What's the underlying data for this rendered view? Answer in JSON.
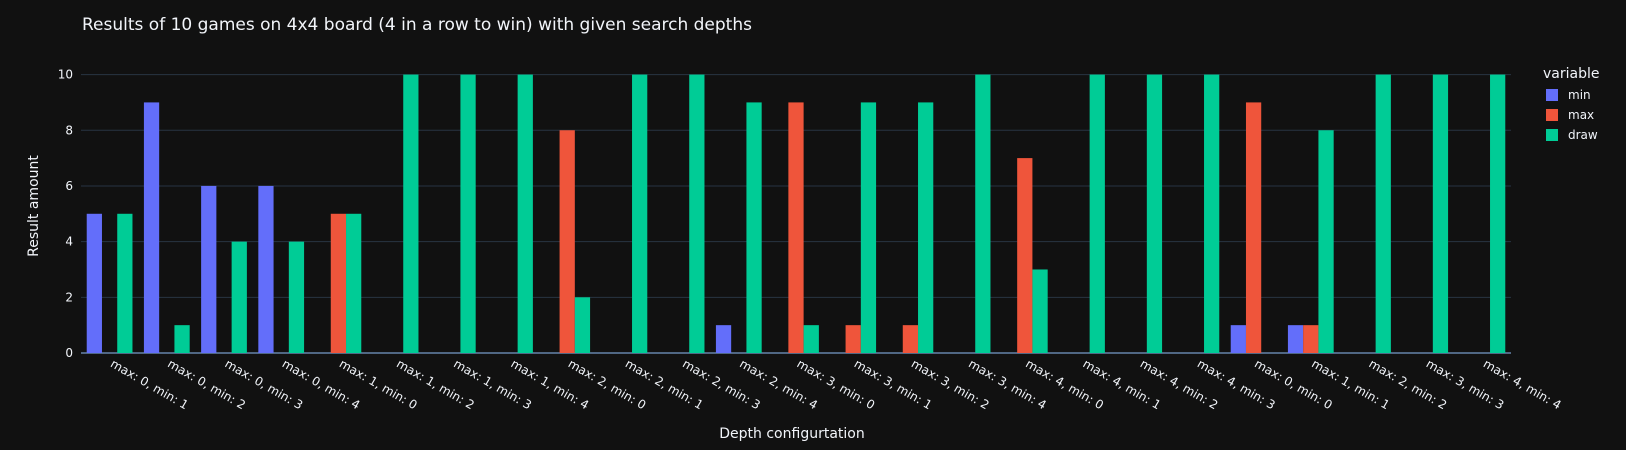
{
  "chart_data": {
    "type": "bar",
    "title": "Results of 10 games on 4x4 board (4 in a row to win) with given search depths",
    "xlabel": "Depth configurtation",
    "ylabel": "Result amount",
    "ylim": [
      0,
      10.2
    ],
    "yticks": [
      0,
      2,
      4,
      6,
      8,
      10
    ],
    "grid": true,
    "legend": {
      "title": "variable",
      "placement": "top-right"
    },
    "categories": [
      "max: 0, min: 1",
      "max: 0, min: 2",
      "max: 0, min: 3",
      "max: 0, min: 4",
      "max: 1, min: 0",
      "max: 1, min: 2",
      "max: 1, min: 3",
      "max: 1, min: 4",
      "max: 2, min: 0",
      "max: 2, min: 1",
      "max: 2, min: 3",
      "max: 2, min: 4",
      "max: 3, min: 0",
      "max: 3, min: 1",
      "max: 3, min: 2",
      "max: 3, min: 4",
      "max: 4, min: 0",
      "max: 4, min: 1",
      "max: 4, min: 2",
      "max: 4, min: 3",
      "max: 0, min: 0",
      "max: 1, min: 1",
      "max: 2, min: 2",
      "max: 3, min: 3",
      "max: 4, min: 4"
    ],
    "series": [
      {
        "name": "min",
        "color": "#636efa",
        "values": [
          5,
          9,
          6,
          6,
          0,
          0,
          0,
          0,
          0,
          0,
          0,
          1,
          0,
          0,
          0,
          0,
          0,
          0,
          0,
          0,
          1,
          1,
          0,
          0,
          0
        ]
      },
      {
        "name": "max",
        "color": "#ef553b",
        "values": [
          0,
          0,
          0,
          0,
          5,
          0,
          0,
          0,
          8,
          0,
          0,
          0,
          9,
          1,
          1,
          0,
          7,
          0,
          0,
          0,
          9,
          1,
          0,
          0,
          0
        ]
      },
      {
        "name": "draw",
        "color": "#00cc96",
        "values": [
          5,
          1,
          4,
          4,
          5,
          10,
          10,
          10,
          2,
          10,
          10,
          9,
          1,
          9,
          9,
          10,
          3,
          10,
          10,
          10,
          0,
          8,
          10,
          10,
          10
        ]
      }
    ]
  }
}
